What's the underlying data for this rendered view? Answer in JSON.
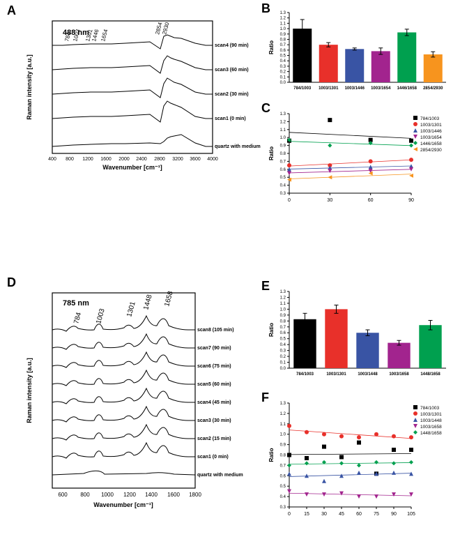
{
  "panelA": {
    "label": "A",
    "title": "488 nm",
    "xlabel": "Wavenumber [cm⁻¹]",
    "ylabel": "Raman intensity [a.u.]",
    "xlim": [
      400,
      4000
    ],
    "xticks": [
      400,
      800,
      1200,
      1600,
      2000,
      2400,
      2800,
      3200,
      3600,
      4000
    ],
    "peaks": [
      "784",
      "1003",
      "1301",
      "1446",
      "1654",
      "2854",
      "2930"
    ],
    "traces": [
      "scan4 (90 min)",
      "scan3 (60 min)",
      "scan2 (30 min)",
      "scan1 (0 min)",
      "quartz with medium"
    ],
    "line_color": "#000000",
    "background": "#ffffff"
  },
  "panelB": {
    "label": "B",
    "ylabel": "Ratio",
    "ylim": [
      0,
      1.3
    ],
    "yticks": [
      0,
      0.1,
      0.2,
      0.3,
      0.4,
      0.5,
      0.6,
      0.7,
      0.8,
      0.9,
      1.0,
      1.1,
      1.2,
      1.3
    ],
    "categories": [
      "784/1003",
      "1003/1301",
      "1003/1446",
      "1003/1654",
      "1446/1658",
      "2854/2930"
    ],
    "values": [
      1.0,
      0.7,
      0.62,
      0.58,
      0.93,
      0.52
    ],
    "errors": [
      0.17,
      0.04,
      0.02,
      0.06,
      0.06,
      0.05
    ],
    "colors": [
      "#000000",
      "#e8302a",
      "#3954a4",
      "#a2248e",
      "#00a04f",
      "#f7941e"
    ]
  },
  "panelC": {
    "label": "C",
    "ylabel": "Ratio",
    "ylim": [
      0.3,
      1.3
    ],
    "yticks": [
      0.3,
      0.4,
      0.5,
      0.6,
      0.7,
      0.8,
      0.9,
      1.0,
      1.1,
      1.2,
      1.3
    ],
    "xlim": [
      0,
      90
    ],
    "xticks": [
      0,
      30,
      60,
      90
    ],
    "series": [
      {
        "name": "784/1003",
        "marker": "square",
        "color": "#000000",
        "y": [
          0.96,
          1.22,
          0.97,
          0.96
        ]
      },
      {
        "name": "1003/1301",
        "marker": "circle",
        "color": "#e8302a",
        "y": [
          0.65,
          0.65,
          0.7,
          0.72
        ]
      },
      {
        "name": "1003/1446",
        "marker": "triangle-up",
        "color": "#3954a4",
        "y": [
          0.6,
          0.62,
          0.63,
          0.64
        ]
      },
      {
        "name": "1003/1654",
        "marker": "triangle-down",
        "color": "#a2248e",
        "y": [
          0.55,
          0.58,
          0.58,
          0.6
        ]
      },
      {
        "name": "1446/1658",
        "marker": "diamond",
        "color": "#00a04f",
        "y": [
          0.97,
          0.9,
          0.93,
          0.9
        ]
      },
      {
        "name": "2854/2930",
        "marker": "triangle-left",
        "color": "#f7941e",
        "y": [
          0.47,
          0.5,
          0.55,
          0.52
        ]
      }
    ]
  },
  "panelD": {
    "label": "D",
    "title": "785 nm",
    "xlabel": "Wavenumber [cm⁻¹]",
    "ylabel": "Raman intensity [a.u.]",
    "xlim": [
      500,
      1800
    ],
    "xticks": [
      600,
      800,
      1000,
      1200,
      1400,
      1600,
      1800
    ],
    "peaks": [
      "784",
      "1003",
      "1301",
      "1448",
      "1658"
    ],
    "traces": [
      "scan8 (105 min)",
      "scan7 (90 min)",
      "scan6 (75 min)",
      "scan5 (60 min)",
      "scan4 (45 min)",
      "scan3 (30 min)",
      "scan2 (15 min)",
      "scan1 (0 min)",
      "quartz with medium"
    ],
    "line_color": "#000000",
    "background": "#ffffff"
  },
  "panelE": {
    "label": "E",
    "ylabel": "Ratio",
    "ylim": [
      0,
      1.3
    ],
    "yticks": [
      0,
      0.1,
      0.2,
      0.3,
      0.4,
      0.5,
      0.6,
      0.7,
      0.8,
      0.9,
      1.0,
      1.1,
      1.2,
      1.3
    ],
    "categories": [
      "784/1003",
      "1003/1301",
      "1003/1448",
      "1003/1658",
      "1448/1658"
    ],
    "values": [
      0.83,
      1.0,
      0.6,
      0.43,
      0.73
    ],
    "errors": [
      0.1,
      0.07,
      0.05,
      0.04,
      0.08
    ],
    "colors": [
      "#000000",
      "#e8302a",
      "#3954a4",
      "#a2248e",
      "#00a04f"
    ]
  },
  "panelF": {
    "label": "F",
    "ylabel": "Ratio",
    "ylim": [
      0.3,
      1.3
    ],
    "yticks": [
      0.3,
      0.4,
      0.5,
      0.6,
      0.7,
      0.8,
      0.9,
      1.0,
      1.1,
      1.2,
      1.3
    ],
    "xlim": [
      0,
      105
    ],
    "xticks": [
      0,
      15,
      30,
      45,
      60,
      75,
      90,
      105
    ],
    "series": [
      {
        "name": "784/1003",
        "marker": "square",
        "color": "#000000",
        "y": [
          0.8,
          0.77,
          0.88,
          0.78,
          0.92,
          0.62,
          0.85,
          0.85
        ]
      },
      {
        "name": "1003/1301",
        "marker": "circle",
        "color": "#e8302a",
        "y": [
          1.08,
          1.02,
          1.0,
          0.98,
          0.97,
          1.0,
          0.98,
          0.97
        ]
      },
      {
        "name": "1003/1448",
        "marker": "triangle-up",
        "color": "#3954a4",
        "y": [
          0.62,
          0.6,
          0.55,
          0.6,
          0.63,
          0.62,
          0.63,
          0.62
        ]
      },
      {
        "name": "1003/1658",
        "marker": "triangle-down",
        "color": "#a2248e",
        "y": [
          0.45,
          0.42,
          0.42,
          0.43,
          0.4,
          0.4,
          0.42,
          0.42
        ]
      },
      {
        "name": "1448/1658",
        "marker": "diamond",
        "color": "#00a04f",
        "y": [
          0.7,
          0.72,
          0.73,
          0.72,
          0.7,
          0.73,
          0.72,
          0.73
        ]
      }
    ]
  }
}
